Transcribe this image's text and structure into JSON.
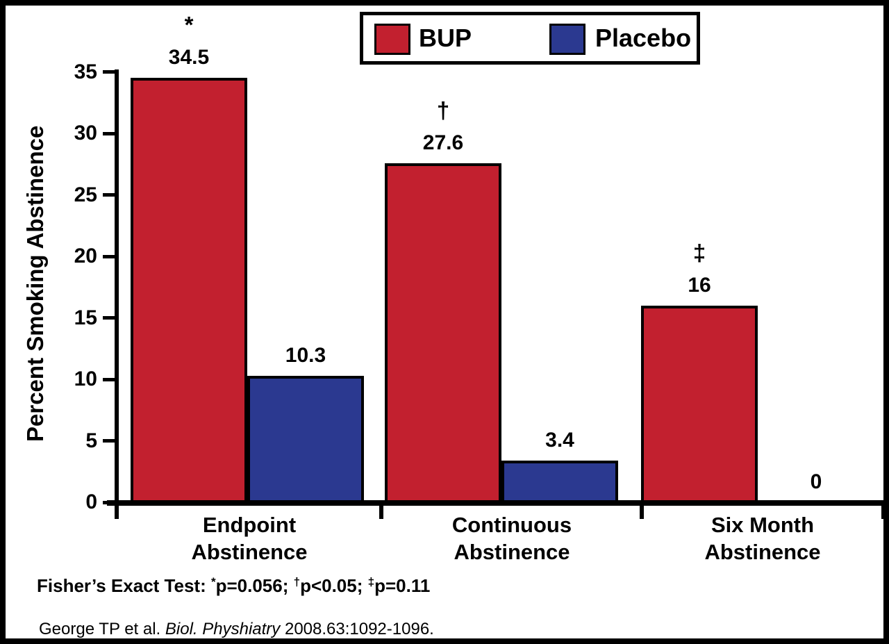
{
  "figure": {
    "background": "#FFFFFF",
    "border_color": "#000000"
  },
  "chart_data": {
    "type": "bar",
    "title": "",
    "xlabel": "",
    "ylabel": "Percent Smoking Abstinence",
    "ylim": [
      0,
      35
    ],
    "yticks": [
      0,
      5,
      10,
      15,
      20,
      25,
      30,
      35
    ],
    "grid": false,
    "legend_position": "top-center",
    "categories": [
      {
        "lines": [
          "Endpoint",
          "Abstinence"
        ]
      },
      {
        "lines": [
          "Continuous",
          "Abstinence"
        ]
      },
      {
        "lines": [
          "Six  Month",
          "Abstinence"
        ]
      }
    ],
    "series": [
      {
        "name": "BUP",
        "color": "#C2202F",
        "values": [
          34.5,
          27.6,
          16
        ],
        "value_labels": [
          "34.5",
          "27.6",
          "16"
        ],
        "significance_symbols": [
          "*",
          "†",
          "‡"
        ]
      },
      {
        "name": "Placebo",
        "color": "#2B3990",
        "values": [
          10.3,
          3.4,
          0
        ],
        "value_labels": [
          "10.3",
          "3.4",
          "0"
        ],
        "significance_symbols": [
          "",
          "",
          ""
        ]
      }
    ]
  },
  "footnote": {
    "prefix": "Fisher’s Exact Test: ",
    "segments": [
      {
        "sup": "*",
        "text": "p=0.056; "
      },
      {
        "sup": "†",
        "text": "p<0.05; "
      },
      {
        "sup": "‡",
        "text": "p=0.11"
      }
    ]
  },
  "citation": {
    "segments": [
      {
        "text": "George TP et al. ",
        "italic": false
      },
      {
        "text": "Biol. Physhiatry",
        "italic": true
      },
      {
        "text": " 2008.63:1092-1096.",
        "italic": false
      }
    ]
  }
}
